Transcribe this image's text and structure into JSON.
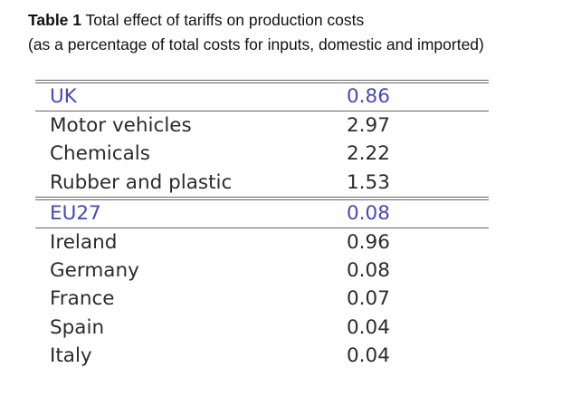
{
  "caption": {
    "label": "Table 1",
    "title": " Total effect of tariffs on production costs",
    "subtitle": "(as a percentage of total costs for inputs, domestic and imported)"
  },
  "table": {
    "groups": [
      {
        "name": "UK",
        "value": "0.86",
        "rows": [
          {
            "name": "Motor vehicles",
            "value": "2.97"
          },
          {
            "name": "Chemicals",
            "value": "2.22"
          },
          {
            "name": "Rubber and plastic",
            "value": "1.53"
          }
        ]
      },
      {
        "name": "EU27",
        "value": "0.08",
        "rows": [
          {
            "name": "Ireland",
            "value": "0.96"
          },
          {
            "name": "Germany",
            "value": "0.08"
          },
          {
            "name": "France",
            "value": "0.07"
          },
          {
            "name": "Spain",
            "value": "0.04"
          },
          {
            "name": "Italy",
            "value": "0.04"
          }
        ]
      }
    ]
  },
  "colors": {
    "group_text": "#4848b8",
    "body_text": "#2b2b2b",
    "rules": "#666666"
  }
}
